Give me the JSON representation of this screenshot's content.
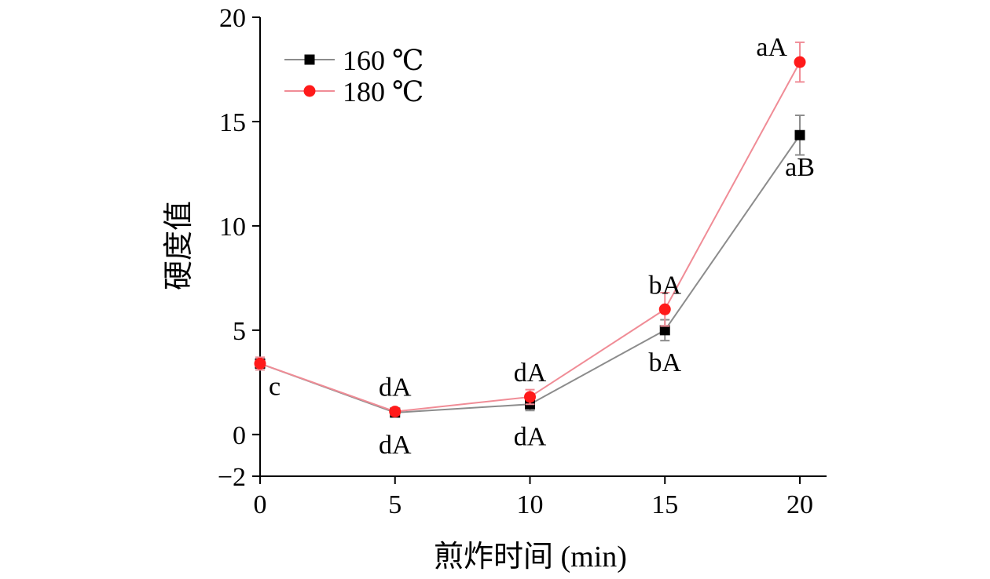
{
  "chart_data": {
    "type": "line",
    "xlabel": "煎炸时间 (min)",
    "ylabel": "硬度值",
    "xlim": [
      0,
      20
    ],
    "ylim": [
      -2,
      20
    ],
    "x_ticks": [
      "0",
      "5",
      "10",
      "15",
      "20"
    ],
    "y_ticks": [
      "−2",
      "0",
      "5",
      "10",
      "15",
      "20"
    ],
    "grid": false,
    "legend_position": "top-left",
    "x": [
      0,
      5,
      10,
      15,
      20
    ],
    "series": [
      {
        "name": "160 ℃",
        "color": "#8c8c8c",
        "marker_color": "#000000",
        "marker": "square",
        "values": [
          3.4,
          1.05,
          1.45,
          5.0,
          14.35
        ],
        "errors": [
          0.3,
          0.15,
          0.3,
          0.5,
          0.95
        ]
      },
      {
        "name": "180 ℃",
        "color": "#f08c96",
        "marker_color": "#ff1a1a",
        "marker": "circle",
        "values": [
          3.4,
          1.1,
          1.8,
          6.0,
          17.85
        ],
        "errors": [
          0.3,
          0.15,
          0.35,
          0.8,
          0.95
        ]
      }
    ],
    "annotations": [
      {
        "text": "c",
        "x": 0,
        "y": 3.4,
        "position": "below-right"
      },
      {
        "text": "dA",
        "x": 5,
        "y": 1.1,
        "position": "above"
      },
      {
        "text": "dA",
        "x": 5,
        "y": 1.05,
        "position": "below"
      },
      {
        "text": "dA",
        "x": 10,
        "y": 1.8,
        "position": "above"
      },
      {
        "text": "dA",
        "x": 10,
        "y": 1.45,
        "position": "below"
      },
      {
        "text": "bA",
        "x": 15,
        "y": 6.0,
        "position": "above"
      },
      {
        "text": "bA",
        "x": 15,
        "y": 5.0,
        "position": "below"
      },
      {
        "text": "aA",
        "x": 20,
        "y": 17.85,
        "position": "left"
      },
      {
        "text": "aB",
        "x": 20,
        "y": 14.35,
        "position": "below"
      }
    ]
  }
}
